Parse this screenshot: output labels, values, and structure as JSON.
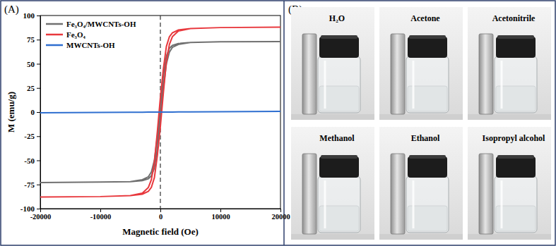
{
  "chart_data": {
    "type": "line",
    "title": "(A)",
    "x_label": "Magnetic field (Oe)",
    "y_label": "M (emu/g)",
    "x": [
      -20000,
      -10000,
      -5000,
      -3000,
      -2000,
      -1500,
      -1000,
      -500,
      0,
      500,
      1000,
      1500,
      2000,
      3000,
      5000,
      10000,
      20000,
      20000,
      10000,
      5000,
      3000,
      2000,
      1500,
      1000,
      500,
      0,
      -500,
      -1000,
      -1500,
      -2000,
      -3000,
      -5000,
      -10000,
      -20000
    ],
    "series": [
      {
        "name": "Fe₃O₄/MWCNTs-OH",
        "color": "#707070",
        "values": [
          -73,
          -72.5,
          -72,
          -71,
          -69,
          -66,
          -58,
          -38,
          -8,
          25,
          50,
          62,
          67,
          70,
          72,
          72.8,
          73,
          73,
          72.8,
          72,
          71,
          69,
          66,
          58,
          38,
          8,
          -25,
          -50,
          -62,
          -67,
          -70,
          -72,
          -72.5,
          -73
        ]
      },
      {
        "name": "Fe₃O₄",
        "color": "#e8383d",
        "values": [
          -88,
          -87.5,
          -86.5,
          -85,
          -82,
          -78,
          -68,
          -45,
          -15,
          20,
          52,
          70,
          78,
          84,
          86.5,
          87.5,
          88,
          88,
          87.5,
          86.5,
          85,
          82,
          78,
          68,
          45,
          15,
          -20,
          -52,
          -70,
          -78,
          -84,
          -86.5,
          -87.5,
          -88
        ]
      },
      {
        "name": "MWCNTs-OH",
        "color": "#2f6fd0",
        "values": [
          -0.8,
          -0.4,
          -0.2,
          -0.12,
          -0.08,
          -0.06,
          -0.04,
          -0.02,
          0,
          0.02,
          0.04,
          0.06,
          0.08,
          0.12,
          0.2,
          0.4,
          0.8,
          0.8,
          0.4,
          0.2,
          0.12,
          0.08,
          0.06,
          0.04,
          0.02,
          0,
          -0.02,
          -0.04,
          -0.06,
          -0.08,
          -0.12,
          -0.2,
          -0.4,
          -0.8
        ]
      }
    ],
    "xlim": [
      -20000,
      20000
    ],
    "xticks": [
      -20000,
      -10000,
      0,
      10000,
      20000
    ],
    "ylim": [
      -100,
      100
    ],
    "yticks": [
      -100,
      -75,
      -50,
      -25,
      0,
      25,
      50,
      75,
      100
    ],
    "vline_x": 0,
    "legend": "upper left",
    "grid": false
  },
  "photo_panel": {
    "label": "(B)",
    "samples": [
      "H₂O",
      "Acetone",
      "Acetonitrile",
      "Methanol",
      "Ethanol",
      "Isopropyl alcohol"
    ]
  }
}
